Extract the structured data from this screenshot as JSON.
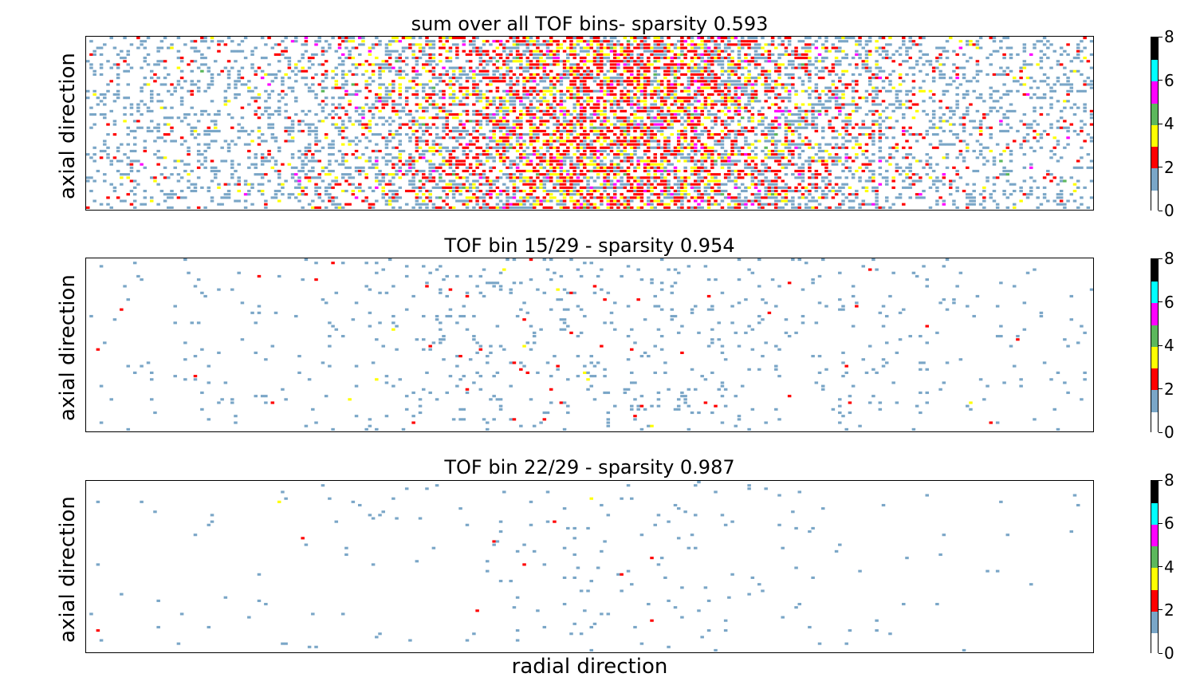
{
  "panels": [
    {
      "title": "sum over all TOF bins- sparsity 0.593",
      "ylabel": "axial direction",
      "sparsity": 0.593
    },
    {
      "title": "TOF bin 15/29 - sparsity 0.954",
      "ylabel": "axial direction",
      "sparsity": 0.954
    },
    {
      "title": "TOF bin 22/29 - sparsity 0.987",
      "ylabel": "axial direction",
      "sparsity": 0.987
    }
  ],
  "xlabel": "radial direction",
  "colorbar": {
    "ticks": [
      "0",
      "2",
      "4",
      "6",
      "8"
    ],
    "tick_values": [
      0,
      2,
      4,
      6,
      8
    ],
    "range": [
      0,
      8
    ],
    "colors": [
      "#ffffff",
      "#7aa6c7",
      "#ff0000",
      "#ffff00",
      "#5cb85c",
      "#ff00ff",
      "#00ffff",
      "#000000"
    ]
  },
  "chart_data": [
    {
      "type": "heatmap",
      "title": "sum over all TOF bins- sparsity 0.593",
      "xlabel": "",
      "ylabel": "axial direction",
      "vrange": [
        0,
        8
      ],
      "sparsity": 0.593,
      "colorbar_ticks": [
        0,
        2,
        4,
        6,
        8
      ]
    },
    {
      "type": "heatmap",
      "title": "TOF bin 15/29 - sparsity 0.954",
      "xlabel": "",
      "ylabel": "axial direction",
      "vrange": [
        0,
        8
      ],
      "sparsity": 0.954,
      "colorbar_ticks": [
        0,
        2,
        4,
        6,
        8
      ]
    },
    {
      "type": "heatmap",
      "title": "TOF bin 22/29 - sparsity 0.987",
      "xlabel": "radial direction",
      "ylabel": "axial direction",
      "vrange": [
        0,
        8
      ],
      "sparsity": 0.987,
      "colorbar_ticks": [
        0,
        2,
        4,
        6,
        8
      ]
    }
  ]
}
